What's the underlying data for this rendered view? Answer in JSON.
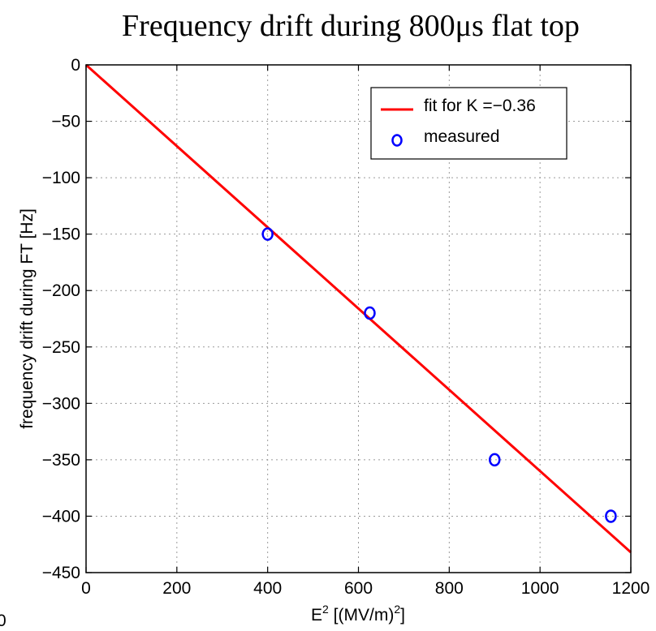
{
  "chart_data": {
    "type": "scatter",
    "title": "Frequency drift during 800μs flat top",
    "xlabel": {
      "base": "E",
      "sup": "2",
      "rest": " [(MV/m)",
      "sup2": "2",
      "close": "]"
    },
    "ylabel": "frequency drift during FT [Hz]",
    "xlim": [
      0,
      1200
    ],
    "ylim": [
      -450,
      0
    ],
    "x_ticks": [
      "0",
      "200",
      "400",
      "600",
      "800",
      "1000",
      "1200"
    ],
    "y_ticks": [
      "0",
      "−50",
      "−100",
      "−150",
      "−200",
      "−250",
      "−300",
      "−350",
      "−400",
      "−450"
    ],
    "grid": true,
    "legend_position": "top-right",
    "series": [
      {
        "name": "fit for K  =−0.36",
        "kind": "line",
        "color": "#ff0000",
        "x": [
          0,
          1200
        ],
        "y": [
          0,
          -432
        ]
      },
      {
        "name": "measured",
        "kind": "markers",
        "color": "#0000ff",
        "x": [
          400,
          625,
          900,
          1156
        ],
        "y": [
          -150,
          -220,
          -350,
          -400
        ]
      }
    ],
    "edge_text": "0"
  }
}
